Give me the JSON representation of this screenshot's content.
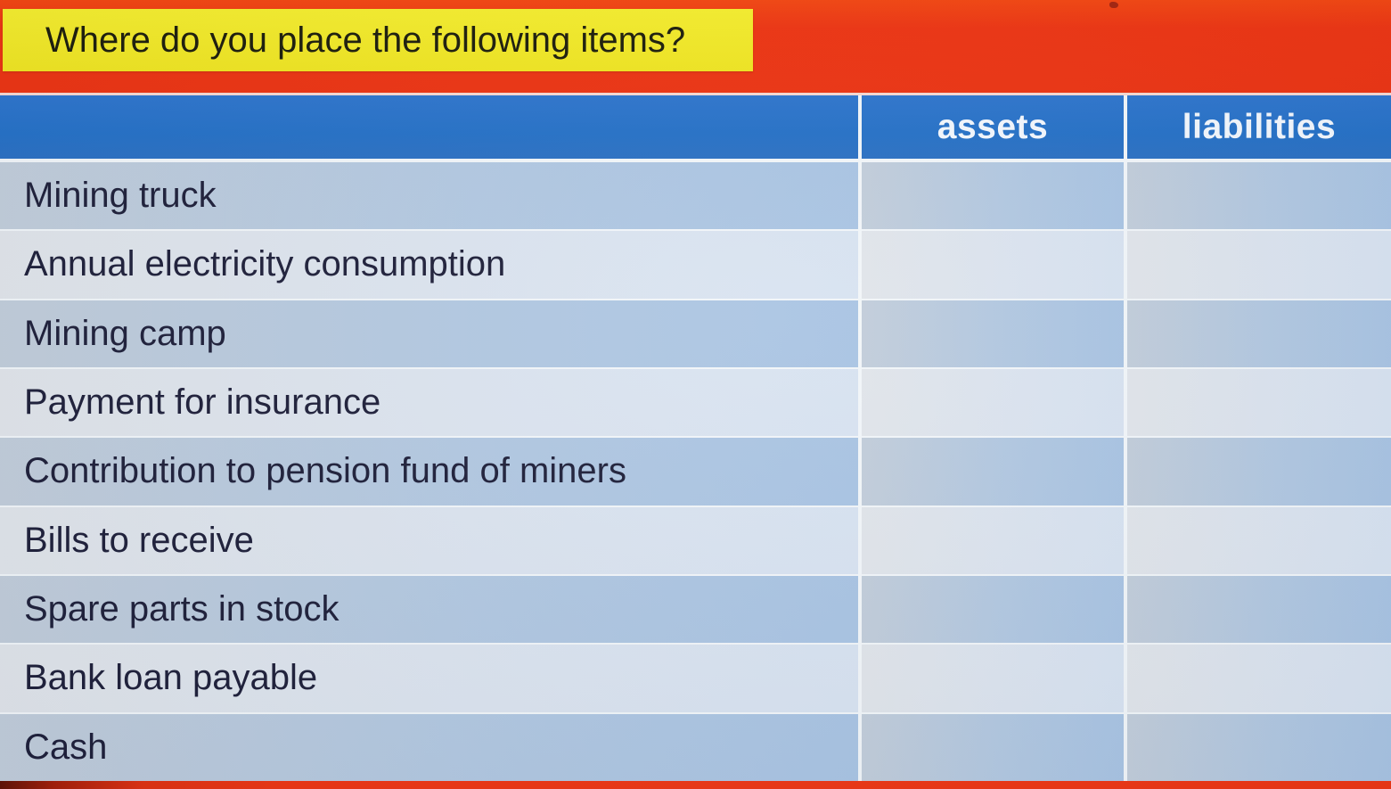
{
  "banner": {
    "title": "Where do you place the following items?"
  },
  "table": {
    "header": {
      "item_col": "",
      "assets": "assets",
      "liabilities": "liabilities"
    },
    "rows": [
      {
        "item": "Mining truck",
        "assets": "",
        "liabilities": ""
      },
      {
        "item": "Annual electricity consumption",
        "assets": "",
        "liabilities": ""
      },
      {
        "item": "Mining camp",
        "assets": "",
        "liabilities": ""
      },
      {
        "item": "Payment for insurance",
        "assets": "",
        "liabilities": ""
      },
      {
        "item": "Contribution to pension fund of miners",
        "assets": "",
        "liabilities": ""
      },
      {
        "item": "Bills to receive",
        "assets": "",
        "liabilities": ""
      },
      {
        "item": "Spare parts in stock",
        "assets": "",
        "liabilities": ""
      },
      {
        "item": "Bank loan payable",
        "assets": "",
        "liabilities": ""
      },
      {
        "item": "Cash",
        "assets": "",
        "liabilities": ""
      }
    ]
  },
  "colors": {
    "banner_red": "#ee3310",
    "title_yellow": "#f2e824",
    "header_blue": "#2470c6",
    "header_text": "#f4f8fd",
    "row_dark": "#aec6e2",
    "row_light": "#dce4ee",
    "grid_line": "#f2f6f9",
    "row_text": "#1e1f39",
    "bottom_bar_red": "#ee3512"
  }
}
